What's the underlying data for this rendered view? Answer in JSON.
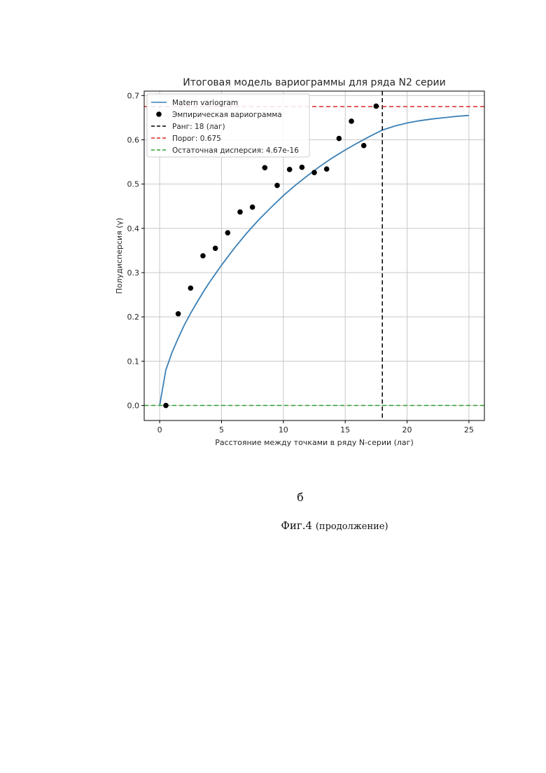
{
  "chart_data": {
    "type": "scatter",
    "title": "Итоговая модель вариограммы для ряда N2 серии",
    "xlabel": "Расстояние между точками в ряду N-серии (лаг)",
    "ylabel": "Полудисперсия (γ)",
    "xlim": [
      -1.25,
      26.25
    ],
    "ylim": [
      -0.034,
      0.71
    ],
    "xticks": [
      0,
      5,
      10,
      15,
      20,
      25
    ],
    "xtick_labels": [
      "0",
      "5",
      "10",
      "15",
      "20",
      "25"
    ],
    "yticks": [
      0.0,
      0.1,
      0.2,
      0.3,
      0.4,
      0.5,
      0.6,
      0.7
    ],
    "ytick_labels": [
      "0.0",
      "0.1",
      "0.2",
      "0.3",
      "0.4",
      "0.5",
      "0.6",
      "0.7"
    ],
    "grid": true,
    "legend": "top-left",
    "series": [
      {
        "name": "Matern variogram",
        "kind": "line",
        "color": "#3a7fb5",
        "x": [
          0,
          0.5,
          1,
          1.5,
          2,
          2.5,
          3,
          3.5,
          4,
          5,
          6,
          7,
          8,
          9,
          10,
          11,
          12,
          13,
          14,
          15,
          16,
          17,
          18,
          19,
          20,
          21,
          22,
          23,
          24,
          25
        ],
        "y": [
          0,
          0.08,
          0.12,
          0.152,
          0.182,
          0.208,
          0.232,
          0.255,
          0.277,
          0.317,
          0.354,
          0.388,
          0.419,
          0.447,
          0.474,
          0.498,
          0.52,
          0.541,
          0.56,
          0.577,
          0.593,
          0.608,
          0.622,
          0.631,
          0.638,
          0.643,
          0.647,
          0.65,
          0.653,
          0.655
        ]
      },
      {
        "name": "Эмпирическая вариограмма",
        "kind": "scatter",
        "color": "#000000",
        "x": [
          0.5,
          1.5,
          2.5,
          3.5,
          4.5,
          5.5,
          6.5,
          7.5,
          8.5,
          9.5,
          10.5,
          11.5,
          12.5,
          13.5,
          14.5,
          15.5,
          16.5,
          17.5
        ],
        "y": [
          0.0,
          0.207,
          0.265,
          0.338,
          0.355,
          0.39,
          0.437,
          0.448,
          0.537,
          0.497,
          0.533,
          0.538,
          0.526,
          0.534,
          0.603,
          0.642,
          0.587,
          0.676
        ]
      },
      {
        "name": "Ранг: 18 (лаг)",
        "kind": "vline",
        "value": 18,
        "color": "#000000"
      },
      {
        "name": "Порог: 0.675",
        "kind": "hline",
        "value": 0.675,
        "color": "#d62728"
      },
      {
        "name": "Остаточная дисперсия: 4.67e-16",
        "kind": "hline",
        "value": 0.0,
        "color": "#2ca02c"
      }
    ]
  },
  "captions": {
    "panel_letter": "б",
    "figure_label": "Фиг.4",
    "figure_note": "(продолжение)"
  }
}
